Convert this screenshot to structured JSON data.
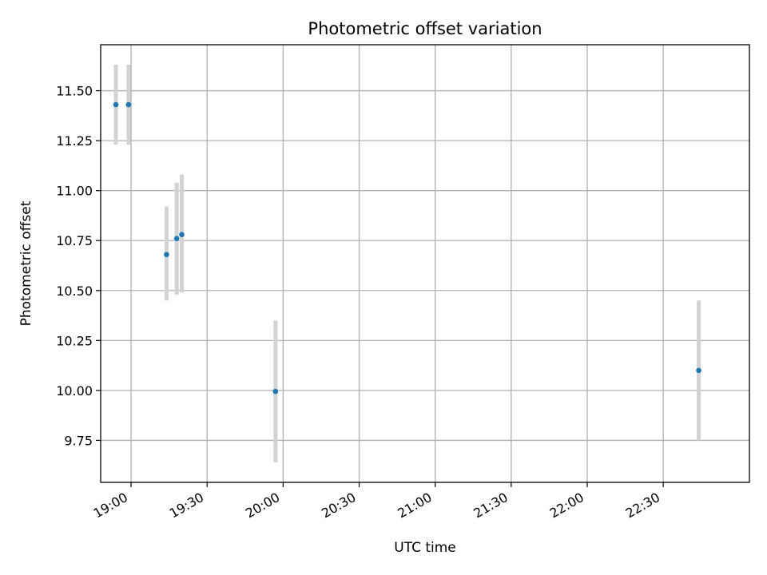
{
  "chart_data": {
    "type": "scatter",
    "title": "Photometric offset variation",
    "xlabel": "UTC time",
    "ylabel": "Photometric offset",
    "x_is_time": true,
    "x_ticks": [
      "19:00",
      "19:30",
      "20:00",
      "20:30",
      "21:00",
      "21:30",
      "22:00",
      "22:30"
    ],
    "y_ticks": [
      "9.75",
      "10.00",
      "10.25",
      "10.50",
      "10.75",
      "11.00",
      "11.25",
      "11.50"
    ],
    "xlim": [
      "18:48",
      "23:04"
    ],
    "ylim": [
      9.54,
      11.73
    ],
    "grid": true,
    "points": [
      {
        "time": "18:54",
        "y": 11.43,
        "err_low": 11.23,
        "err_high": 11.63
      },
      {
        "time": "18:59",
        "y": 11.43,
        "err_low": 11.23,
        "err_high": 11.63
      },
      {
        "time": "19:14",
        "y": 10.68,
        "err_low": 10.45,
        "err_high": 10.92
      },
      {
        "time": "19:18",
        "y": 10.76,
        "err_low": 10.48,
        "err_high": 11.04
      },
      {
        "time": "19:20",
        "y": 10.78,
        "err_low": 10.49,
        "err_high": 11.08
      },
      {
        "time": "19:57",
        "y": 9.995,
        "err_low": 9.64,
        "err_high": 10.35
      },
      {
        "time": "22:44",
        "y": 10.1,
        "err_low": 9.75,
        "err_high": 10.45
      }
    ],
    "colors": {
      "marker": "#1f77b4",
      "errorbar": "#d3d3d3",
      "grid": "#b0b0b0",
      "axes": "#000000"
    }
  }
}
